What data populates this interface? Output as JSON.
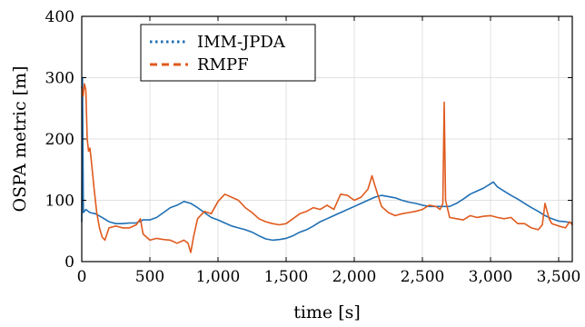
{
  "chart_data": {
    "type": "line",
    "title": "",
    "xlabel": "time [s]",
    "ylabel": "OSPA metric [m]",
    "xlim": [
      0,
      3600
    ],
    "ylim": [
      0,
      400
    ],
    "xticks": [
      0,
      500,
      1000,
      1500,
      2000,
      2500,
      3000,
      3500
    ],
    "xtick_labels": [
      "0",
      "500",
      "1,000",
      "1,500",
      "2,000",
      "2,500",
      "3,000",
      "3,500"
    ],
    "yticks": [
      0,
      100,
      200,
      300,
      400
    ],
    "ytick_labels": [
      "0",
      "100",
      "200",
      "300",
      "400"
    ],
    "grid": true,
    "legend_position": "top-left",
    "series": [
      {
        "name": "IMM-JPDA",
        "color": "#1f6fb4",
        "style": "dotted",
        "points": [
          [
            0,
            65
          ],
          [
            5,
            300
          ],
          [
            12,
            80
          ],
          [
            30,
            85
          ],
          [
            60,
            80
          ],
          [
            100,
            78
          ],
          [
            150,
            72
          ],
          [
            200,
            65
          ],
          [
            250,
            62
          ],
          [
            300,
            62
          ],
          [
            350,
            63
          ],
          [
            400,
            63
          ],
          [
            450,
            68
          ],
          [
            500,
            68
          ],
          [
            550,
            72
          ],
          [
            600,
            80
          ],
          [
            650,
            88
          ],
          [
            700,
            92
          ],
          [
            750,
            98
          ],
          [
            800,
            95
          ],
          [
            850,
            88
          ],
          [
            900,
            80
          ],
          [
            950,
            72
          ],
          [
            1000,
            68
          ],
          [
            1050,
            63
          ],
          [
            1100,
            58
          ],
          [
            1150,
            55
          ],
          [
            1200,
            52
          ],
          [
            1250,
            48
          ],
          [
            1300,
            42
          ],
          [
            1350,
            37
          ],
          [
            1400,
            35
          ],
          [
            1450,
            36
          ],
          [
            1500,
            38
          ],
          [
            1550,
            42
          ],
          [
            1600,
            48
          ],
          [
            1650,
            52
          ],
          [
            1700,
            58
          ],
          [
            1750,
            65
          ],
          [
            1800,
            70
          ],
          [
            1850,
            75
          ],
          [
            1900,
            80
          ],
          [
            1950,
            85
          ],
          [
            2000,
            90
          ],
          [
            2050,
            95
          ],
          [
            2100,
            100
          ],
          [
            2150,
            105
          ],
          [
            2200,
            108
          ],
          [
            2250,
            106
          ],
          [
            2300,
            104
          ],
          [
            2350,
            100
          ],
          [
            2400,
            97
          ],
          [
            2450,
            95
          ],
          [
            2500,
            92
          ],
          [
            2550,
            90
          ],
          [
            2600,
            90
          ],
          [
            2650,
            90
          ],
          [
            2700,
            90
          ],
          [
            2750,
            95
          ],
          [
            2800,
            102
          ],
          [
            2850,
            110
          ],
          [
            2900,
            115
          ],
          [
            2950,
            120
          ],
          [
            3000,
            127
          ],
          [
            3020,
            130
          ],
          [
            3050,
            122
          ],
          [
            3100,
            115
          ],
          [
            3150,
            108
          ],
          [
            3200,
            102
          ],
          [
            3250,
            95
          ],
          [
            3300,
            88
          ],
          [
            3350,
            82
          ],
          [
            3400,
            75
          ],
          [
            3450,
            70
          ],
          [
            3500,
            66
          ],
          [
            3550,
            65
          ],
          [
            3600,
            63
          ]
        ]
      },
      {
        "name": "RMPF",
        "color": "#e05a1e",
        "style": "dashed",
        "points": [
          [
            0,
            285
          ],
          [
            10,
            270
          ],
          [
            20,
            290
          ],
          [
            30,
            280
          ],
          [
            40,
            200
          ],
          [
            50,
            180
          ],
          [
            60,
            185
          ],
          [
            70,
            165
          ],
          [
            90,
            120
          ],
          [
            110,
            80
          ],
          [
            130,
            55
          ],
          [
            150,
            40
          ],
          [
            170,
            35
          ],
          [
            200,
            55
          ],
          [
            250,
            58
          ],
          [
            300,
            55
          ],
          [
            350,
            55
          ],
          [
            400,
            60
          ],
          [
            430,
            70
          ],
          [
            450,
            45
          ],
          [
            500,
            35
          ],
          [
            550,
            38
          ],
          [
            600,
            36
          ],
          [
            650,
            35
          ],
          [
            700,
            30
          ],
          [
            750,
            35
          ],
          [
            780,
            30
          ],
          [
            800,
            15
          ],
          [
            820,
            40
          ],
          [
            850,
            70
          ],
          [
            900,
            82
          ],
          [
            950,
            78
          ],
          [
            1000,
            98
          ],
          [
            1050,
            110
          ],
          [
            1100,
            105
          ],
          [
            1150,
            100
          ],
          [
            1200,
            88
          ],
          [
            1250,
            80
          ],
          [
            1300,
            70
          ],
          [
            1350,
            65
          ],
          [
            1400,
            62
          ],
          [
            1450,
            60
          ],
          [
            1500,
            62
          ],
          [
            1550,
            70
          ],
          [
            1600,
            78
          ],
          [
            1650,
            82
          ],
          [
            1700,
            88
          ],
          [
            1750,
            85
          ],
          [
            1800,
            92
          ],
          [
            1850,
            85
          ],
          [
            1900,
            110
          ],
          [
            1950,
            108
          ],
          [
            2000,
            100
          ],
          [
            2050,
            105
          ],
          [
            2100,
            118
          ],
          [
            2130,
            140
          ],
          [
            2150,
            125
          ],
          [
            2200,
            90
          ],
          [
            2250,
            80
          ],
          [
            2300,
            75
          ],
          [
            2350,
            78
          ],
          [
            2400,
            80
          ],
          [
            2450,
            82
          ],
          [
            2500,
            85
          ],
          [
            2550,
            92
          ],
          [
            2600,
            90
          ],
          [
            2630,
            85
          ],
          [
            2650,
            95
          ],
          [
            2660,
            260
          ],
          [
            2670,
            100
          ],
          [
            2700,
            72
          ],
          [
            2750,
            70
          ],
          [
            2800,
            68
          ],
          [
            2850,
            75
          ],
          [
            2900,
            72
          ],
          [
            2950,
            74
          ],
          [
            3000,
            75
          ],
          [
            3050,
            72
          ],
          [
            3100,
            70
          ],
          [
            3150,
            72
          ],
          [
            3200,
            62
          ],
          [
            3250,
            62
          ],
          [
            3300,
            55
          ],
          [
            3350,
            52
          ],
          [
            3380,
            60
          ],
          [
            3400,
            95
          ],
          [
            3430,
            70
          ],
          [
            3450,
            62
          ],
          [
            3500,
            58
          ],
          [
            3550,
            55
          ],
          [
            3580,
            65
          ],
          [
            3600,
            60
          ]
        ]
      }
    ]
  }
}
